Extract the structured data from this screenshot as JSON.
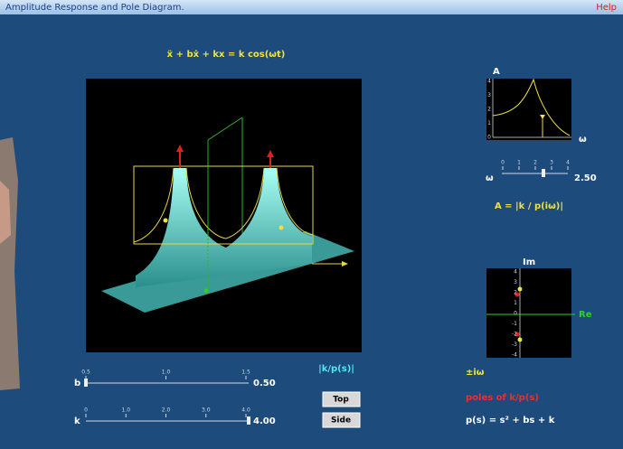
{
  "header": {
    "title": "Amplitude Response and Pole Diagram.",
    "help": "Help"
  },
  "equation": "ẍ + bẋ + kx  = k cos(ωt)",
  "surface_label": "|k/p(s)|",
  "b_slider": {
    "label": "b",
    "ticks": [
      "0.5",
      "1.0",
      "1.5"
    ],
    "value": "0.50"
  },
  "k_slider": {
    "label": "k",
    "ticks": [
      "0",
      "1.0",
      "2.0",
      "3.0",
      "4.0"
    ],
    "value": "4.00"
  },
  "buttons": [
    "Top",
    "Side"
  ],
  "amplitude_plot": {
    "y_label": "A",
    "x_label": "ω",
    "yticks": [
      "4",
      "3",
      "2",
      "1",
      "0"
    ]
  },
  "omega_slider": {
    "label": "ω",
    "ticks": [
      "0",
      "1",
      "2",
      "3",
      "4"
    ],
    "value": "2.50"
  },
  "amplitude_formula": "A = |k / p(iω)|",
  "pole_plot": {
    "y_label": "Im",
    "x_label": "Re",
    "yticks": [
      "4",
      "3",
      "2",
      "1",
      "0",
      "-1",
      "-2",
      "-3",
      "-4"
    ]
  },
  "legend": {
    "roots": "±iω",
    "poles": "poles of k/p(s)",
    "polynomial": "p(s) = s² + bs + k"
  }
}
